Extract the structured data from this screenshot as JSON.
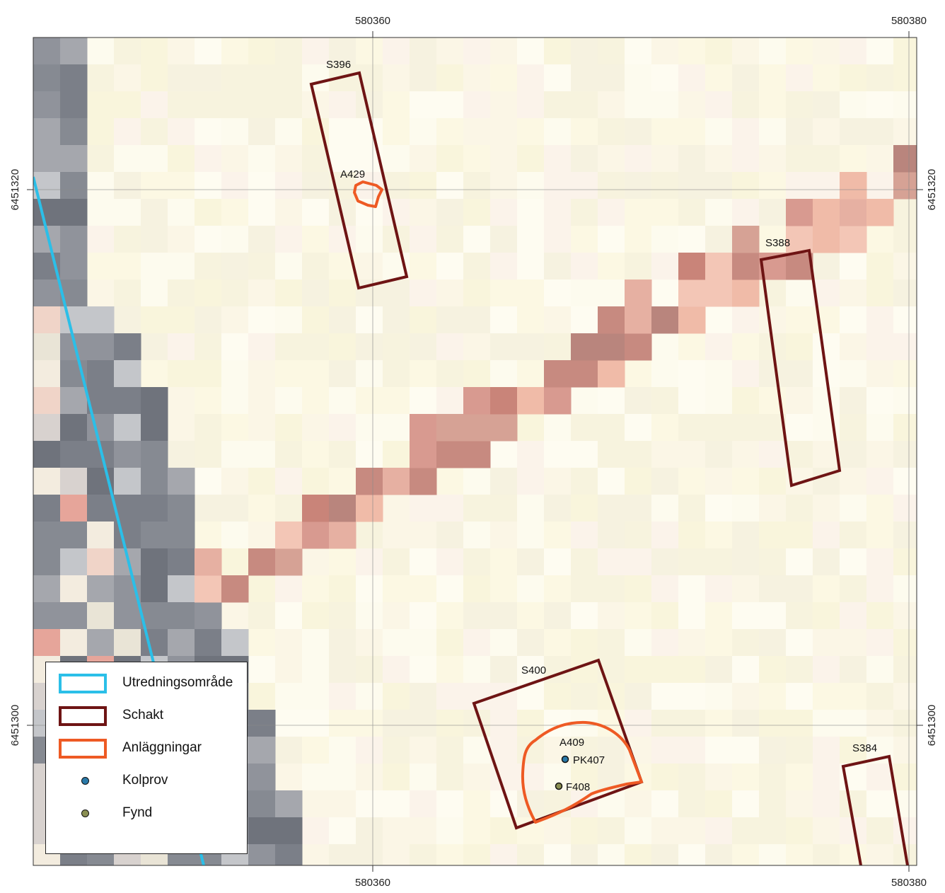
{
  "map": {
    "coords": {
      "x_left": "580360",
      "x_right": "580380",
      "y_upper": "6451320",
      "y_lower": "6451300"
    },
    "features": {
      "trenches": [
        "S396",
        "S388",
        "S400",
        "S384"
      ],
      "structures": [
        "A429",
        "A409"
      ],
      "samples": [
        "PK407"
      ],
      "finds": [
        "F408"
      ]
    }
  },
  "legend": {
    "items": [
      {
        "label": "Utredningsområde",
        "color": "#2bbfe8"
      },
      {
        "label": "Schakt",
        "color": "#6e1414"
      },
      {
        "label": "Anläggningar",
        "color": "#ee5a24"
      },
      {
        "label": "Kolprov",
        "color": "#2a79a8"
      },
      {
        "label": "Fynd",
        "color": "#8a8f52"
      }
    ]
  },
  "colors": {
    "boundary": "#2bbfe8",
    "trench": "#6e1414",
    "feature": "#ee5a24",
    "sample": "#2a79a8",
    "find": "#8a8f52"
  }
}
